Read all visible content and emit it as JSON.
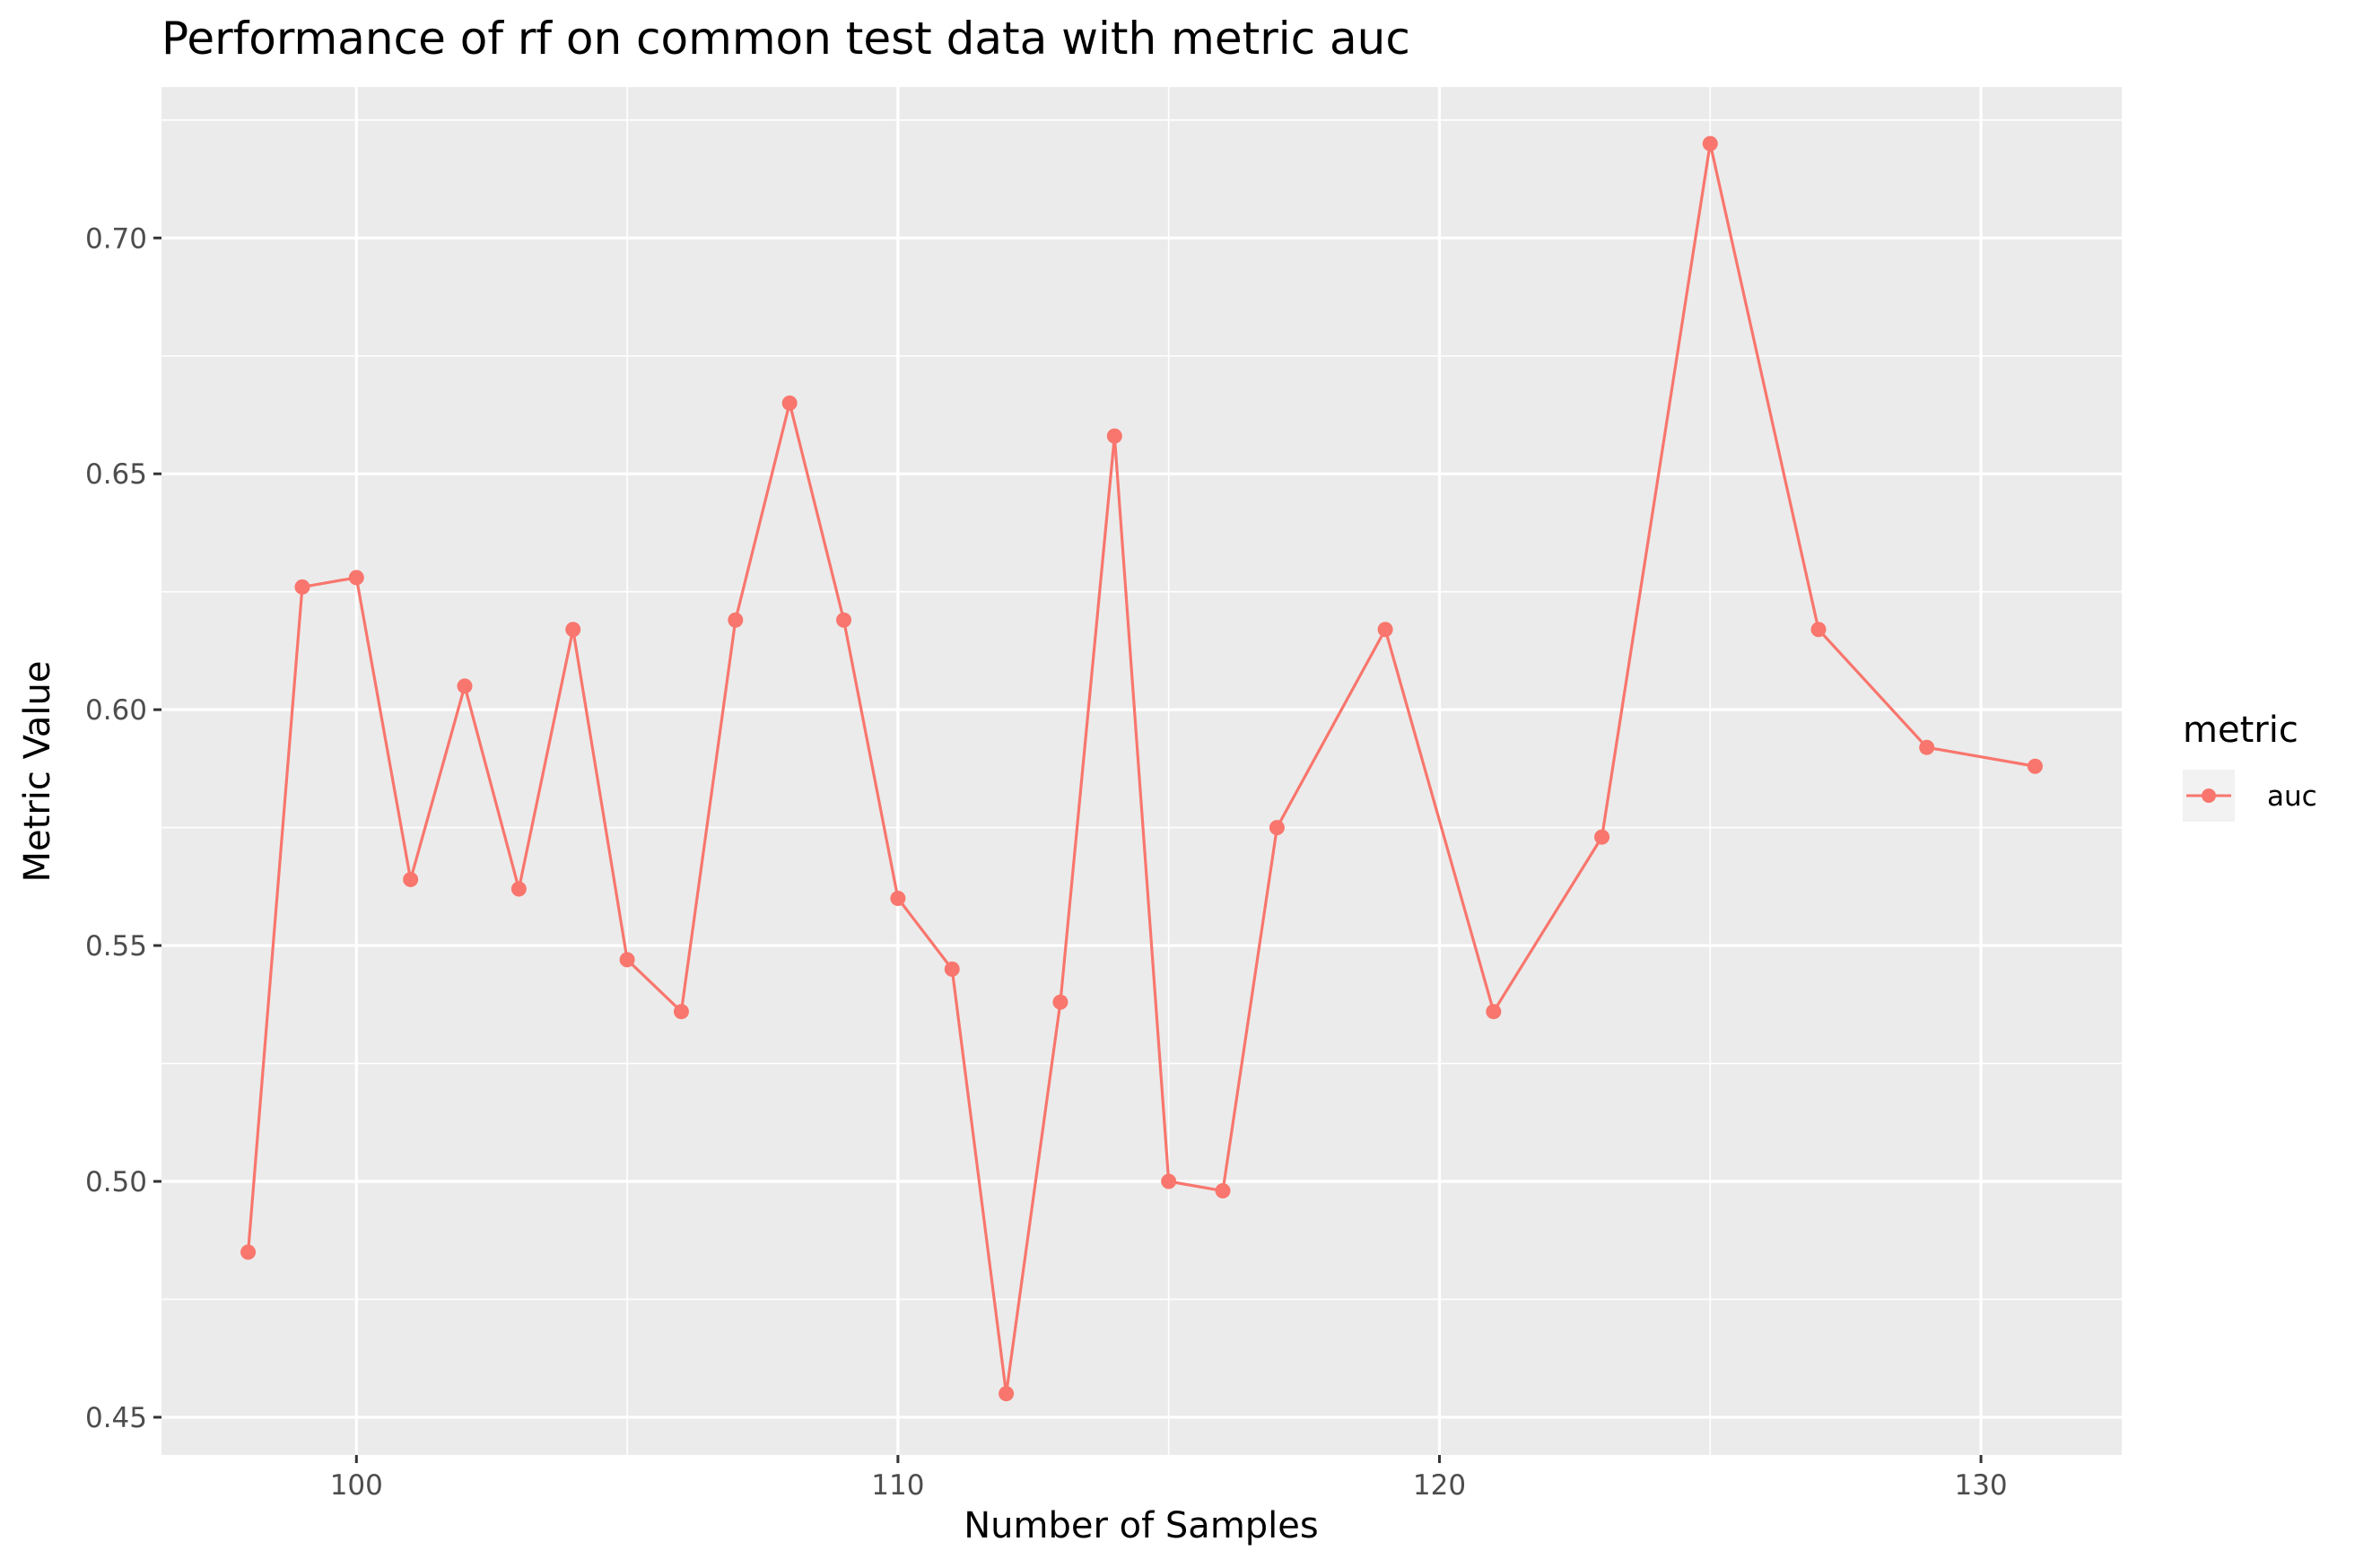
{
  "chart_data": {
    "type": "line",
    "title": "Performance of rf on common test data with metric auc",
    "xlabel": "Number of Samples",
    "ylabel": "Metric Value",
    "xlim": [
      96.4,
      132.6
    ],
    "ylim": [
      0.442,
      0.732
    ],
    "xticks": [
      100,
      110,
      120,
      130
    ],
    "xtick_labels": [
      "100",
      "110",
      "120",
      "130"
    ],
    "yticks": [
      0.45,
      0.5,
      0.55,
      0.6,
      0.65,
      0.7
    ],
    "ytick_labels": [
      "0.45",
      "0.50",
      "0.55",
      "0.60",
      "0.65",
      "0.70"
    ],
    "grid": true,
    "legend": {
      "title": "metric",
      "position": "right"
    },
    "series": [
      {
        "name": "auc",
        "color": "#F8766D",
        "x": [
          98,
          99,
          100,
          101,
          102,
          103,
          104,
          105,
          106,
          107,
          108,
          109,
          110,
          111,
          112,
          113,
          114,
          115,
          116,
          117,
          119,
          121,
          123,
          125,
          127,
          129,
          131
        ],
        "y": [
          0.485,
          0.626,
          0.628,
          0.564,
          0.605,
          0.562,
          0.617,
          0.547,
          0.536,
          0.619,
          0.665,
          0.619,
          0.56,
          0.545,
          0.455,
          0.538,
          0.658,
          0.5,
          0.498,
          0.575,
          0.617,
          0.536,
          0.573,
          0.72,
          0.617,
          0.592,
          0.588
        ]
      }
    ]
  }
}
